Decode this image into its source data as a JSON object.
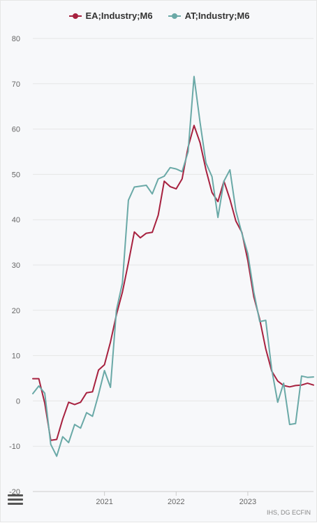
{
  "legend": {
    "ea_label": "EA;Industry;M6",
    "at_label": "AT;Industry;M6"
  },
  "credits": "IHS, DG ECFIN",
  "colors": {
    "ea": "#a7213f",
    "at": "#6aa9a7",
    "grid": "#e6e6e6",
    "axis": "#cccccc"
  },
  "chart_data": {
    "type": "line",
    "title": "",
    "xlabel": "",
    "ylabel": "",
    "ylim": [
      -20,
      80
    ],
    "yticks": [
      "-20",
      "-10",
      "0",
      "10",
      "20",
      "30",
      "40",
      "50",
      "60",
      "70",
      "80"
    ],
    "xticks": [
      "2021",
      "2022",
      "2023"
    ],
    "grid": true,
    "legend_position": "top-center",
    "x": [
      "2020-01",
      "2020-02",
      "2020-03",
      "2020-04",
      "2020-05",
      "2020-06",
      "2020-07",
      "2020-08",
      "2020-09",
      "2020-10",
      "2020-11",
      "2020-12",
      "2021-01",
      "2021-02",
      "2021-03",
      "2021-04",
      "2021-05",
      "2021-06",
      "2021-07",
      "2021-08",
      "2021-09",
      "2021-10",
      "2021-11",
      "2021-12",
      "2022-01",
      "2022-02",
      "2022-03",
      "2022-04",
      "2022-05",
      "2022-06",
      "2022-07",
      "2022-08",
      "2022-09",
      "2022-10",
      "2022-11",
      "2022-12",
      "2023-01",
      "2023-02",
      "2023-03",
      "2023-04",
      "2023-05",
      "2023-06",
      "2023-07",
      "2023-08",
      "2023-09",
      "2023-10",
      "2023-11",
      "2023-12"
    ],
    "series": [
      {
        "name": "EA;Industry;M6",
        "values": [
          4.9,
          4.9,
          -0.5,
          -8.7,
          -8.5,
          -4.0,
          -0.3,
          -0.8,
          -0.3,
          1.8,
          2.0,
          6.8,
          8.0,
          13.0,
          19.0,
          24.0,
          30.5,
          37.3,
          36.0,
          37.0,
          37.2,
          41.0,
          48.5,
          47.3,
          46.8,
          49.0,
          56.0,
          60.8,
          57.0,
          51.0,
          46.0,
          44.0,
          48.5,
          44.5,
          39.7,
          37.2,
          31.0,
          23.0,
          18.0,
          11.5,
          6.6,
          4.4,
          3.4,
          3.1,
          3.4,
          3.5,
          3.9,
          3.5
        ]
      },
      {
        "name": "AT;Industry;M6",
        "values": [
          1.6,
          3.3,
          1.7,
          -9.6,
          -12.2,
          -7.9,
          -9.2,
          -5.2,
          -6.0,
          -2.6,
          -3.4,
          1.4,
          6.7,
          3.0,
          20.0,
          26.0,
          44.3,
          47.2,
          47.4,
          47.6,
          45.7,
          49.0,
          49.6,
          51.5,
          51.2,
          50.6,
          55.0,
          71.6,
          61.5,
          52.5,
          49.5,
          40.5,
          48.5,
          51.0,
          42.0,
          37.0,
          32.5,
          24.0,
          17.5,
          17.8,
          7.0,
          -0.3,
          3.9,
          -5.2,
          -5.0,
          5.5,
          5.2,
          5.3
        ]
      }
    ]
  }
}
